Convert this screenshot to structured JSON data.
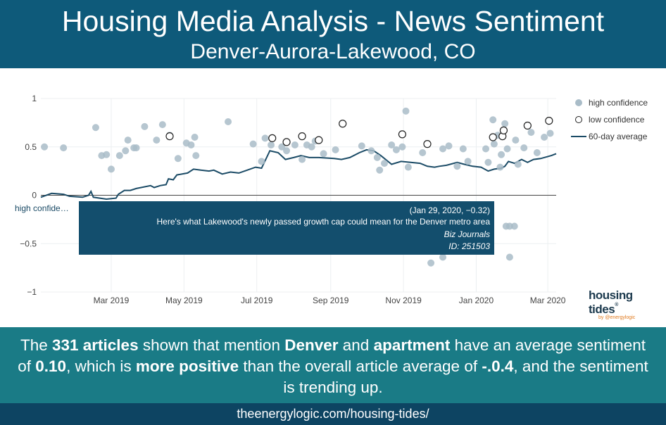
{
  "header": {
    "title": "Housing Media Analysis - News Sentiment",
    "subtitle": "Denver-Aurora-Lakewood, CO"
  },
  "legend": {
    "high": "high confidence",
    "low": "low confidence",
    "avg": "60-day average"
  },
  "hover_label": "high confide…",
  "tooltip": {
    "coords": "(Jan 29, 2020, −0.32)",
    "headline": "Here's what Lakewood's newly passed growth cap could mean for the Denver metro area",
    "source": "Biz Journals",
    "id": "ID: 251503"
  },
  "logo": {
    "brand": "housing tides",
    "tm": "®",
    "by": "by @energylogic"
  },
  "summary": {
    "t1": "The ",
    "b1": "331 articles",
    "t2": " shown that mention ",
    "b2": "Denver",
    "t3": " and ",
    "b3": "apartment",
    "t4": " have an average sentiment of ",
    "b4": "0.10",
    "t5": ", which is ",
    "b5": "more positive",
    "t6": " than the overall article average of ",
    "b6": "-.0.4",
    "t7": ", and the sentiment is trending up."
  },
  "url": "theenergylogic.com/housing-tides/",
  "colors": {
    "header_bg": "#0e5a7a",
    "band_bg": "#1a7b86",
    "url_bg": "#0d4462",
    "high_dot": "#a9bcc8",
    "avg_line": "#1b4b66"
  },
  "chart_data": {
    "type": "scatter",
    "x_start": "2019-01-01",
    "xlim": [
      "2019-01-01",
      "2020-03-08"
    ],
    "ylim": [
      -1,
      1
    ],
    "yticks": [
      -1,
      -0.5,
      0,
      0.5,
      1
    ],
    "ytick_labels": [
      "−1",
      "−0.5",
      "0",
      "0.5",
      "1"
    ],
    "xticks": [
      {
        "date": "2019-03-01",
        "label": "Mar 2019"
      },
      {
        "date": "2019-05-01",
        "label": "May 2019"
      },
      {
        "date": "2019-07-01",
        "label": "Jul 2019"
      },
      {
        "date": "2019-09-01",
        "label": "Sep 2019"
      },
      {
        "date": "2019-11-01",
        "label": "Nov 2019"
      },
      {
        "date": "2020-01-01",
        "label": "Jan 2020"
      },
      {
        "date": "2020-03-01",
        "label": "Mar 2020"
      }
    ],
    "grid": true,
    "legend_position": "top-right",
    "series": [
      {
        "name": "high confidence",
        "points": [
          [
            "2019-01-04",
            0.5
          ],
          [
            "2019-01-20",
            0.49
          ],
          [
            "2019-02-16",
            0.7
          ],
          [
            "2019-02-21",
            0.41
          ],
          [
            "2019-02-25",
            0.42
          ],
          [
            "2019-03-01",
            0.27
          ],
          [
            "2019-03-08",
            0.41
          ],
          [
            "2019-03-13",
            0.46
          ],
          [
            "2019-03-15",
            0.57
          ],
          [
            "2019-03-20",
            0.49
          ],
          [
            "2019-03-22",
            0.49
          ],
          [
            "2019-03-29",
            0.71
          ],
          [
            "2019-04-08",
            0.57
          ],
          [
            "2019-04-13",
            0.73
          ],
          [
            "2019-04-19",
            0.62
          ],
          [
            "2019-04-26",
            0.38
          ],
          [
            "2019-05-03",
            0.54
          ],
          [
            "2019-05-07",
            0.52
          ],
          [
            "2019-05-10",
            0.6
          ],
          [
            "2019-05-11",
            0.41
          ],
          [
            "2019-06-07",
            0.76
          ],
          [
            "2019-06-28",
            0.53
          ],
          [
            "2019-07-05",
            0.35
          ],
          [
            "2019-07-08",
            0.59
          ],
          [
            "2019-07-13",
            0.52
          ],
          [
            "2019-07-22",
            0.5
          ],
          [
            "2019-07-26",
            0.46
          ],
          [
            "2019-08-02",
            0.52
          ],
          [
            "2019-08-08",
            0.37
          ],
          [
            "2019-08-12",
            0.52
          ],
          [
            "2019-08-16",
            0.5
          ],
          [
            "2019-08-19",
            0.56
          ],
          [
            "2019-08-26",
            0.43
          ],
          [
            "2019-09-05",
            0.47
          ],
          [
            "2019-09-27",
            0.51
          ],
          [
            "2019-10-05",
            0.46
          ],
          [
            "2019-10-10",
            0.39
          ],
          [
            "2019-10-12",
            0.26
          ],
          [
            "2019-10-16",
            0.33
          ],
          [
            "2019-10-22",
            0.52
          ],
          [
            "2019-10-26",
            0.47
          ],
          [
            "2019-10-31",
            0.5
          ],
          [
            "2019-11-03",
            0.87
          ],
          [
            "2019-11-05",
            0.29
          ],
          [
            "2019-11-17",
            0.44
          ],
          [
            "2019-11-24",
            -0.7
          ],
          [
            "2019-12-04",
            0.48
          ],
          [
            "2019-12-04",
            -0.64
          ],
          [
            "2019-12-09",
            0.51
          ],
          [
            "2019-12-16",
            0.3
          ],
          [
            "2019-12-21",
            0.48
          ],
          [
            "2019-12-25",
            0.35
          ],
          [
            "2020-01-09",
            0.48
          ],
          [
            "2020-01-11",
            0.34
          ],
          [
            "2020-01-15",
            0.78
          ],
          [
            "2020-01-16",
            0.53
          ],
          [
            "2020-01-19",
            0.62
          ],
          [
            "2020-01-21",
            0.29
          ],
          [
            "2020-01-22",
            0.42
          ],
          [
            "2020-01-25",
            0.74
          ],
          [
            "2020-01-26",
            -0.32
          ],
          [
            "2020-01-27",
            0.48
          ],
          [
            "2020-01-29",
            -0.64
          ],
          [
            "2020-02-02",
            -0.32
          ],
          [
            "2020-02-03",
            0.57
          ],
          [
            "2020-02-05",
            0.32
          ],
          [
            "2020-02-10",
            0.49
          ],
          [
            "2020-02-16",
            0.65
          ],
          [
            "2020-02-21",
            0.44
          ],
          [
            "2020-02-27",
            0.6
          ],
          [
            "2020-03-03",
            0.64
          ],
          [
            "2020-01-29",
            -0.32
          ]
        ]
      },
      {
        "name": "low confidence",
        "points": [
          [
            "2019-04-19",
            0.61
          ],
          [
            "2019-07-14",
            0.59
          ],
          [
            "2019-07-26",
            0.55
          ],
          [
            "2019-08-08",
            0.61
          ],
          [
            "2019-08-22",
            0.57
          ],
          [
            "2019-09-11",
            0.74
          ],
          [
            "2019-10-31",
            0.63
          ],
          [
            "2019-11-21",
            0.53
          ],
          [
            "2020-01-15",
            0.6
          ],
          [
            "2020-01-23",
            0.61
          ],
          [
            "2020-01-24",
            0.67
          ],
          [
            "2020-02-13",
            0.72
          ],
          [
            "2020-03-02",
            0.77
          ]
        ]
      },
      {
        "name": "60-day average",
        "points": [
          [
            "2019-01-01",
            -0.02
          ],
          [
            "2019-01-10",
            0.02
          ],
          [
            "2019-01-20",
            0.01
          ],
          [
            "2019-01-25",
            -0.01
          ],
          [
            "2019-02-05",
            -0.02
          ],
          [
            "2019-02-10",
            0.0
          ],
          [
            "2019-02-12",
            0.04
          ],
          [
            "2019-02-14",
            -0.02
          ],
          [
            "2019-02-25",
            -0.04
          ],
          [
            "2019-03-05",
            -0.03
          ],
          [
            "2019-03-07",
            0.01
          ],
          [
            "2019-03-12",
            0.05
          ],
          [
            "2019-03-17",
            0.05
          ],
          [
            "2019-03-22",
            0.07
          ],
          [
            "2019-04-03",
            0.1
          ],
          [
            "2019-04-06",
            0.08
          ],
          [
            "2019-04-11",
            0.1
          ],
          [
            "2019-04-16",
            0.11
          ],
          [
            "2019-04-18",
            0.17
          ],
          [
            "2019-04-22",
            0.16
          ],
          [
            "2019-04-25",
            0.21
          ],
          [
            "2019-05-04",
            0.23
          ],
          [
            "2019-05-09",
            0.27
          ],
          [
            "2019-05-15",
            0.26
          ],
          [
            "2019-05-22",
            0.25
          ],
          [
            "2019-05-26",
            0.26
          ],
          [
            "2019-06-02",
            0.22
          ],
          [
            "2019-06-09",
            0.24
          ],
          [
            "2019-06-16",
            0.23
          ],
          [
            "2019-06-23",
            0.26
          ],
          [
            "2019-06-30",
            0.29
          ],
          [
            "2019-07-05",
            0.28
          ],
          [
            "2019-07-12",
            0.46
          ],
          [
            "2019-07-19",
            0.44
          ],
          [
            "2019-07-25",
            0.37
          ],
          [
            "2019-08-01",
            0.39
          ],
          [
            "2019-08-07",
            0.41
          ],
          [
            "2019-08-14",
            0.39
          ],
          [
            "2019-08-22",
            0.39
          ],
          [
            "2019-09-04",
            0.38
          ],
          [
            "2019-09-10",
            0.37
          ],
          [
            "2019-09-17",
            0.39
          ],
          [
            "2019-09-25",
            0.44
          ],
          [
            "2019-10-01",
            0.47
          ],
          [
            "2019-10-07",
            0.46
          ],
          [
            "2019-10-13",
            0.41
          ],
          [
            "2019-10-22",
            0.32
          ],
          [
            "2019-10-30",
            0.35
          ],
          [
            "2019-11-07",
            0.34
          ],
          [
            "2019-11-15",
            0.33
          ],
          [
            "2019-11-21",
            0.3
          ],
          [
            "2019-11-27",
            0.29
          ],
          [
            "2019-12-01",
            0.3
          ],
          [
            "2019-12-07",
            0.31
          ],
          [
            "2019-12-16",
            0.34
          ],
          [
            "2019-12-22",
            0.32
          ],
          [
            "2019-12-29",
            0.3
          ],
          [
            "2020-01-05",
            0.29
          ],
          [
            "2020-01-11",
            0.25
          ],
          [
            "2020-01-16",
            0.27
          ],
          [
            "2020-01-22",
            0.28
          ],
          [
            "2020-01-25",
            0.3
          ],
          [
            "2020-01-28",
            0.35
          ],
          [
            "2020-02-02",
            0.33
          ],
          [
            "2020-02-08",
            0.37
          ],
          [
            "2020-02-13",
            0.34
          ],
          [
            "2020-02-18",
            0.37
          ],
          [
            "2020-02-24",
            0.38
          ],
          [
            "2020-03-04",
            0.41
          ],
          [
            "2020-03-08",
            0.43
          ]
        ]
      }
    ]
  }
}
